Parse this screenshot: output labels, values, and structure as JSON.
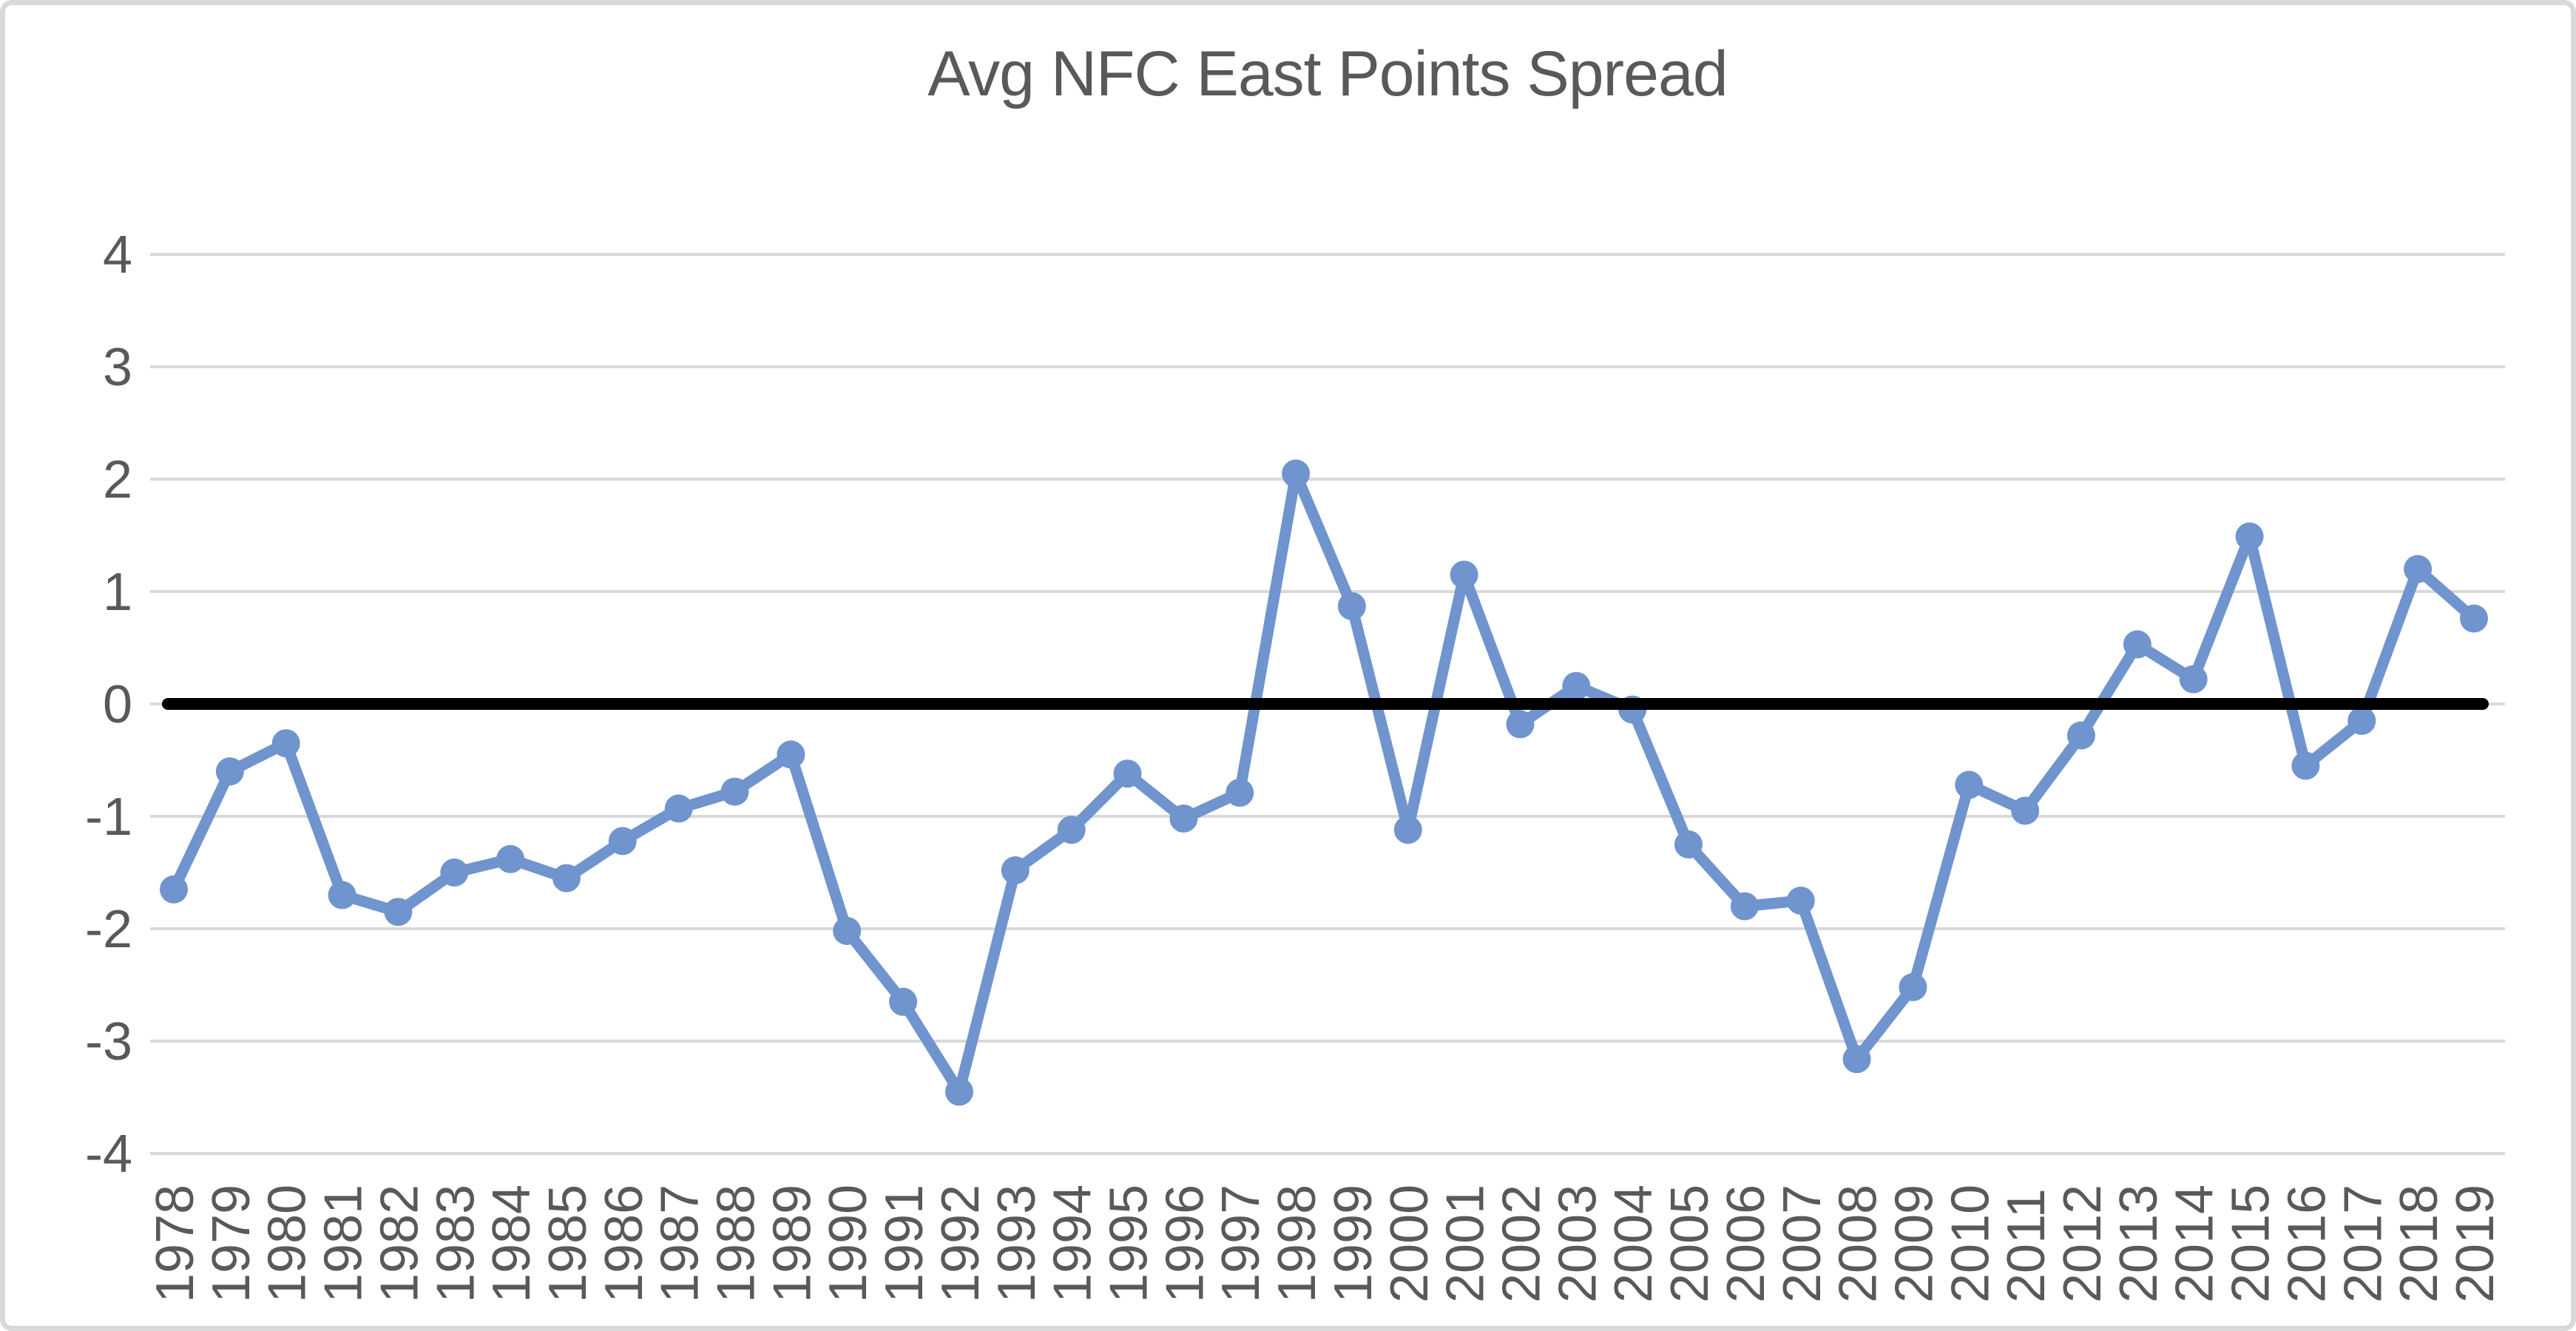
{
  "window": {
    "background": "#ffffff",
    "frame_border_color": "#d9d9d9"
  },
  "chart_data": {
    "type": "line",
    "title": "Avg NFC East Points Spread",
    "xlabel": "",
    "ylabel": "",
    "x_labels": [
      "1978",
      "1979",
      "1980",
      "1981",
      "1982",
      "1983",
      "1984",
      "1985",
      "1986",
      "1987",
      "1988",
      "1989",
      "1990",
      "1991",
      "1992",
      "1993",
      "1994",
      "1995",
      "1996",
      "1997",
      "1998",
      "1999",
      "2000",
      "2001",
      "2002",
      "2003",
      "2004",
      "2005",
      "2006",
      "2007",
      "2008",
      "2009",
      "2010",
      "2011",
      "2012",
      "2013",
      "2014",
      "2015",
      "2016",
      "2017",
      "2018",
      "2019"
    ],
    "series": [
      {
        "name": "Avg NFC East Points Spread",
        "marker": "circle",
        "color": "#7094CE",
        "values": [
          -1.65,
          -0.6,
          -0.35,
          -1.7,
          -1.85,
          -1.5,
          -1.38,
          -1.55,
          -1.22,
          -0.93,
          -0.78,
          -0.45,
          -2.02,
          -2.65,
          -3.45,
          -1.48,
          -1.12,
          -0.62,
          -1.02,
          -0.79,
          2.05,
          0.87,
          -1.12,
          1.15,
          -0.18,
          0.16,
          -0.05,
          -1.25,
          -1.8,
          -1.75,
          -3.16,
          -2.52,
          -0.72,
          -0.95,
          -0.28,
          0.53,
          0.22,
          1.49,
          -0.55,
          -0.15,
          1.2,
          0.76
        ]
      }
    ],
    "baseline": {
      "value": 0,
      "color": "#000000"
    },
    "ylim": [
      -4,
      4
    ],
    "yticks": [
      4,
      3,
      2,
      1,
      0,
      -1,
      -2,
      -3,
      -4
    ],
    "grid": true,
    "gridline_color": "#d9d9d9",
    "tick_label_color": "#595959",
    "title_color": "#595959",
    "legend": "none"
  }
}
